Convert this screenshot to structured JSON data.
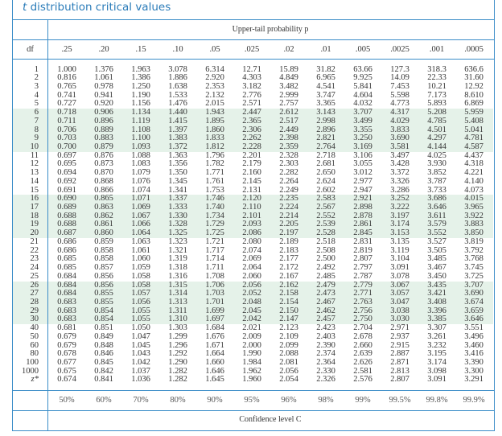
{
  "title": {
    "italic": "t",
    "rest": " distribution critical values"
  },
  "header": {
    "upper_tail_label": "Upper-tail probability p",
    "df_label": "df"
  },
  "columns": [
    ".25",
    ".20",
    ".15",
    ".10",
    ".05",
    ".025",
    ".02",
    ".01",
    ".005",
    ".0025",
    ".001",
    ".0005"
  ],
  "rows": [
    {
      "df": "1",
      "values": [
        "1.000",
        "1.376",
        "1.963",
        "3.078",
        "6.314",
        "12.71",
        "15.89",
        "31.82",
        "63.66",
        "127.3",
        "318.3",
        "636.6"
      ]
    },
    {
      "df": "2",
      "values": [
        "0.816",
        "1.061",
        "1.386",
        "1.886",
        "2.920",
        "4.303",
        "4.849",
        "6.965",
        "9.925",
        "14.09",
        "22.33",
        "31.60"
      ]
    },
    {
      "df": "3",
      "values": [
        "0.765",
        "0.978",
        "1.250",
        "1.638",
        "2.353",
        "3.182",
        "3.482",
        "4.541",
        "5.841",
        "7.453",
        "10.21",
        "12.92"
      ]
    },
    {
      "df": "4",
      "values": [
        "0.741",
        "0.941",
        "1.190",
        "1.533",
        "2.132",
        "2.776",
        "2.999",
        "3.747",
        "4.604",
        "5.598",
        "7.173",
        "8.610"
      ]
    },
    {
      "df": "5",
      "values": [
        "0.727",
        "0.920",
        "1.156",
        "1.476",
        "2.015",
        "2.571",
        "2.757",
        "3.365",
        "4.032",
        "4.773",
        "5.893",
        "6.869"
      ]
    },
    {
      "df": "6",
      "values": [
        "0.718",
        "0.906",
        "1.134",
        "1.440",
        "1.943",
        "2.447",
        "2.612",
        "3.143",
        "3.707",
        "4.317",
        "5.208",
        "5.959"
      ]
    },
    {
      "df": "7",
      "values": [
        "0.711",
        "0.896",
        "1.119",
        "1.415",
        "1.895",
        "2.365",
        "2.517",
        "2.998",
        "3.499",
        "4.029",
        "4.785",
        "5.408"
      ]
    },
    {
      "df": "8",
      "values": [
        "0.706",
        "0.889",
        "1.108",
        "1.397",
        "1.860",
        "2.306",
        "2.449",
        "2.896",
        "3.355",
        "3.833",
        "4.501",
        "5.041"
      ]
    },
    {
      "df": "9",
      "values": [
        "0.703",
        "0.883",
        "1.100",
        "1.383",
        "1.833",
        "2.262",
        "2.398",
        "2.821",
        "3.250",
        "3.690",
        "4.297",
        "4.781"
      ]
    },
    {
      "df": "10",
      "values": [
        "0.700",
        "0.879",
        "1.093",
        "1.372",
        "1.812",
        "2.228",
        "2.359",
        "2.764",
        "3.169",
        "3.581",
        "4.144",
        "4.587"
      ]
    },
    {
      "df": "11",
      "values": [
        "0.697",
        "0.876",
        "1.088",
        "1.363",
        "1.796",
        "2.201",
        "2.328",
        "2.718",
        "3.106",
        "3.497",
        "4.025",
        "4.437"
      ]
    },
    {
      "df": "12",
      "values": [
        "0.695",
        "0.873",
        "1.083",
        "1.356",
        "1.782",
        "2.179",
        "2.303",
        "2.681",
        "3.055",
        "3.428",
        "3.930",
        "4.318"
      ]
    },
    {
      "df": "13",
      "values": [
        "0.694",
        "0.870",
        "1.079",
        "1.350",
        "1.771",
        "2.160",
        "2.282",
        "2.650",
        "3.012",
        "3.372",
        "3.852",
        "4.221"
      ]
    },
    {
      "df": "14",
      "values": [
        "0.692",
        "0.868",
        "1.076",
        "1.345",
        "1.761",
        "2.145",
        "2.264",
        "2.624",
        "2.977",
        "3.326",
        "3.787",
        "4.140"
      ]
    },
    {
      "df": "15",
      "values": [
        "0.691",
        "0.866",
        "1.074",
        "1.341",
        "1.753",
        "2.131",
        "2.249",
        "2.602",
        "2.947",
        "3.286",
        "3.733",
        "4.073"
      ]
    },
    {
      "df": "16",
      "values": [
        "0.690",
        "0.865",
        "1.071",
        "1.337",
        "1.746",
        "2.120",
        "2.235",
        "2.583",
        "2.921",
        "3.252",
        "3.686",
        "4.015"
      ]
    },
    {
      "df": "17",
      "values": [
        "0.689",
        "0.863",
        "1.069",
        "1.333",
        "1.740",
        "2.110",
        "2.224",
        "2.567",
        "2.898",
        "3.222",
        "3.646",
        "3.965"
      ]
    },
    {
      "df": "18",
      "values": [
        "0.688",
        "0.862",
        "1.067",
        "1.330",
        "1.734",
        "2.101",
        "2.214",
        "2.552",
        "2.878",
        "3.197",
        "3.611",
        "3.922"
      ]
    },
    {
      "df": "19",
      "values": [
        "0.688",
        "0.861",
        "1.066",
        "1.328",
        "1.729",
        "2.093",
        "2.205",
        "2.539",
        "2.861",
        "3.174",
        "3.579",
        "3.883"
      ]
    },
    {
      "df": "20",
      "values": [
        "0.687",
        "0.860",
        "1.064",
        "1.325",
        "1.725",
        "2.086",
        "2.197",
        "2.528",
        "2.845",
        "3.153",
        "3.552",
        "3.850"
      ]
    },
    {
      "df": "21",
      "values": [
        "0.686",
        "0.859",
        "1.063",
        "1.323",
        "1.721",
        "2.080",
        "2.189",
        "2.518",
        "2.831",
        "3.135",
        "3.527",
        "3.819"
      ]
    },
    {
      "df": "22",
      "values": [
        "0.686",
        "0.858",
        "1.061",
        "1.321",
        "1.717",
        "2.074",
        "2.183",
        "2.508",
        "2.819",
        "3.119",
        "3.505",
        "3.792"
      ]
    },
    {
      "df": "23",
      "values": [
        "0.685",
        "0.858",
        "1.060",
        "1.319",
        "1.714",
        "2.069",
        "2.177",
        "2.500",
        "2.807",
        "3.104",
        "3.485",
        "3.768"
      ]
    },
    {
      "df": "24",
      "values": [
        "0.685",
        "0.857",
        "1.059",
        "1.318",
        "1.711",
        "2.064",
        "2.172",
        "2.492",
        "2.797",
        "3.091",
        "3.467",
        "3.745"
      ]
    },
    {
      "df": "25",
      "values": [
        "0.684",
        "0.856",
        "1.058",
        "1.316",
        "1.708",
        "2.060",
        "2.167",
        "2.485",
        "2.787",
        "3.078",
        "3.450",
        "3.725"
      ]
    },
    {
      "df": "26",
      "values": [
        "0.684",
        "0.856",
        "1.058",
        "1.315",
        "1.706",
        "2.056",
        "2.162",
        "2.479",
        "2.779",
        "3.067",
        "3.435",
        "3.707"
      ]
    },
    {
      "df": "27",
      "values": [
        "0.684",
        "0.855",
        "1.057",
        "1.314",
        "1.703",
        "2.052",
        "2.158",
        "2.473",
        "2.771",
        "3.057",
        "3.421",
        "3.690"
      ]
    },
    {
      "df": "28",
      "values": [
        "0.683",
        "0.855",
        "1.056",
        "1.313",
        "1.701",
        "2.048",
        "2.154",
        "2.467",
        "2.763",
        "3.047",
        "3.408",
        "3.674"
      ]
    },
    {
      "df": "29",
      "values": [
        "0.683",
        "0.854",
        "1.055",
        "1.311",
        "1.699",
        "2.045",
        "2.150",
        "2.462",
        "2.756",
        "3.038",
        "3.396",
        "3.659"
      ]
    },
    {
      "df": "30",
      "values": [
        "0.683",
        "0.854",
        "1.055",
        "1.310",
        "1.697",
        "2.042",
        "2.147",
        "2.457",
        "2.750",
        "3.030",
        "3.385",
        "3.646"
      ]
    },
    {
      "df": "40",
      "values": [
        "0.681",
        "0.851",
        "1.050",
        "1.303",
        "1.684",
        "2.021",
        "2.123",
        "2.423",
        "2.704",
        "2.971",
        "3.307",
        "3.551"
      ]
    },
    {
      "df": "50",
      "values": [
        "0.679",
        "0.849",
        "1.047",
        "1.299",
        "1.676",
        "2.009",
        "2.109",
        "2.403",
        "2.678",
        "2.937",
        "3.261",
        "3.496"
      ]
    },
    {
      "df": "60",
      "values": [
        "0.679",
        "0.848",
        "1.045",
        "1.296",
        "1.671",
        "2.000",
        "2.099",
        "2.390",
        "2.660",
        "2.915",
        "3.232",
        "3.460"
      ]
    },
    {
      "df": "80",
      "values": [
        "0.678",
        "0.846",
        "1.043",
        "1.292",
        "1.664",
        "1.990",
        "2.088",
        "2.374",
        "2.639",
        "2.887",
        "3.195",
        "3.416"
      ]
    },
    {
      "df": "100",
      "values": [
        "0.677",
        "0.845",
        "1.042",
        "1.290",
        "1.660",
        "1.984",
        "2.081",
        "2.364",
        "2.626",
        "2.871",
        "3.174",
        "3.390"
      ]
    },
    {
      "df": "1000",
      "values": [
        "0.675",
        "0.842",
        "1.037",
        "1.282",
        "1.646",
        "1.962",
        "2.056",
        "2.330",
        "2.581",
        "2.813",
        "3.098",
        "3.300"
      ]
    },
    {
      "df": "z*",
      "values": [
        "0.674",
        "0.841",
        "1.036",
        "1.282",
        "1.645",
        "1.960",
        "2.054",
        "2.326",
        "2.576",
        "2.807",
        "3.091",
        "3.291"
      ]
    }
  ],
  "confidence_levels": [
    "50%",
    "60%",
    "70%",
    "80%",
    "90%",
    "95%",
    "96%",
    "98%",
    "99%",
    "99.5%",
    "99.8%",
    "99.9%"
  ],
  "footer": {
    "confidence_label": "Confidence level C"
  },
  "colors": {
    "rule": "#3b8dc8",
    "band": "#e5f2e9",
    "title": "#2b7cb9"
  }
}
